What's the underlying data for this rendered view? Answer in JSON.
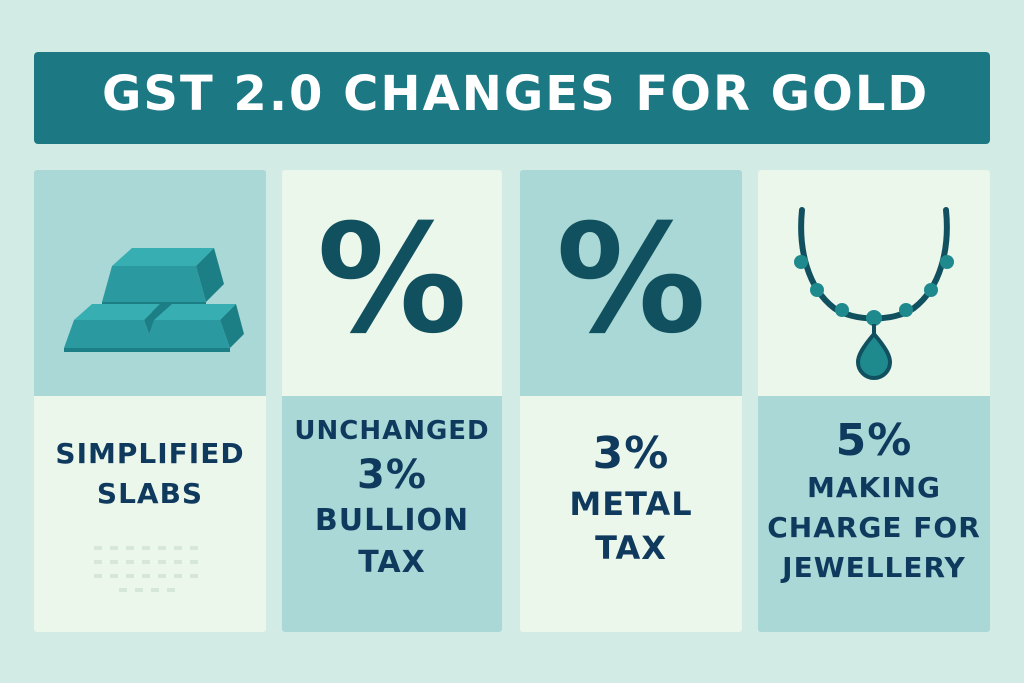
{
  "banner": {
    "title": "GST 2.0 CHANGES FOR GOLD"
  },
  "cards": [
    {
      "icon": "gold-bars-icon",
      "lines": [
        "SIMPLIFIED",
        "SLABS"
      ]
    },
    {
      "icon": "percent-icon",
      "glyph": "%",
      "lines": [
        "UNCHANGED",
        "3%",
        "BULLION",
        "TAX"
      ]
    },
    {
      "icon": "percent-icon",
      "glyph": "%",
      "lines": [
        "3%",
        "METAL",
        "TAX"
      ]
    },
    {
      "icon": "necklace-icon",
      "lines": [
        "5%",
        "MAKING",
        "CHARGE FOR",
        "JEWELLERY"
      ]
    }
  ],
  "colors": {
    "background": "#d3ebe5",
    "banner": "#1c7883",
    "light_panel": "#ecf7ec",
    "teal_panel": "#a9d8d6",
    "text": "#0f3a5e",
    "icon": "#11515f"
  }
}
